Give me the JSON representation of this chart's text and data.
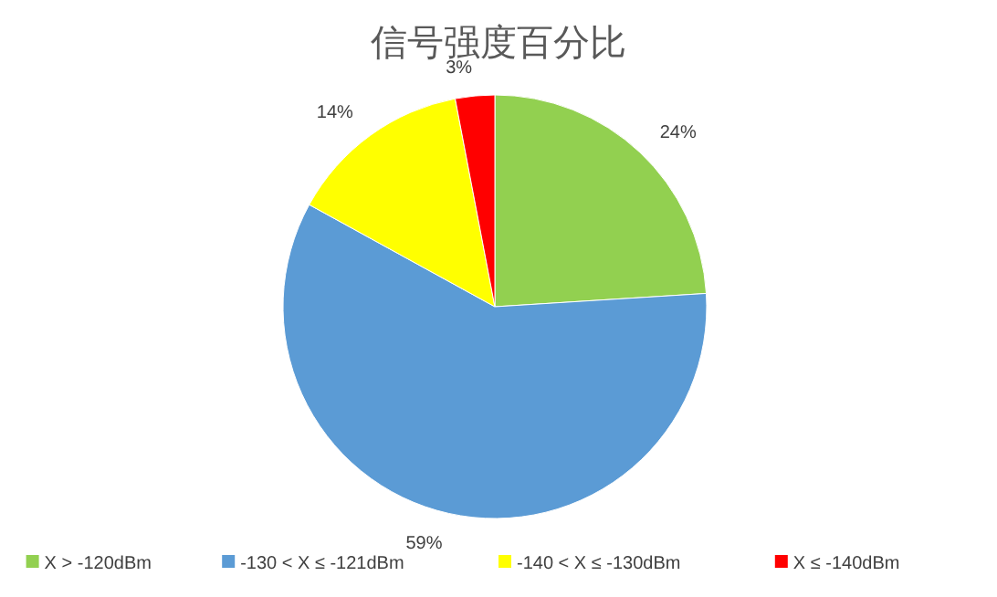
{
  "chart_data": {
    "type": "pie",
    "title": "信号强度百分比",
    "categories": [
      "X > -120dBm",
      "-130 < X ≤ -121dBm",
      "-140 < X ≤ -130dBm",
      "X ≤ -140dBm"
    ],
    "values": [
      24,
      59,
      14,
      3
    ],
    "colors": [
      "#92d050",
      "#5b9bd5",
      "#ffff00",
      "#ff0000"
    ],
    "value_labels": [
      "24%",
      "59%",
      "14%",
      "3%"
    ],
    "legend": "bottom"
  }
}
